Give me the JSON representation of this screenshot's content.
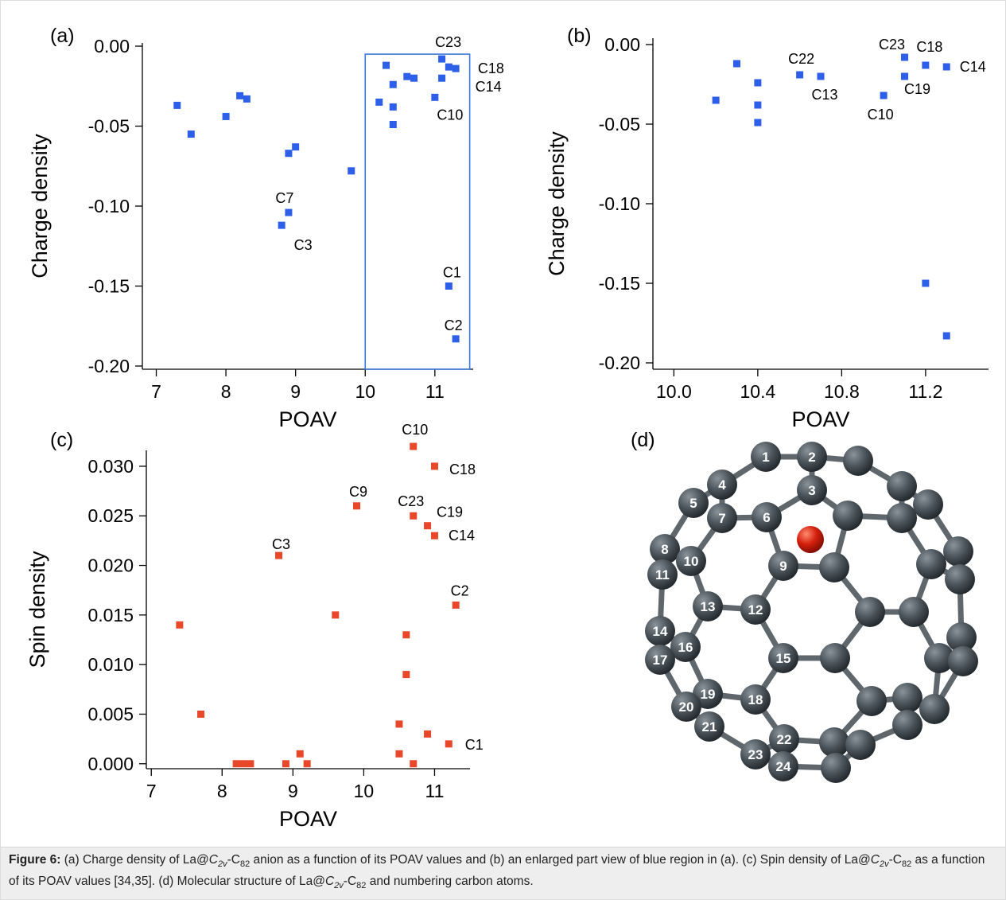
{
  "chart_data": [
    {
      "type": "scatter",
      "panel_label": "(a)",
      "x_label": "POAV",
      "y_label": "Charge density",
      "color": "#2d5fe8",
      "x": [
        7.3,
        7.5,
        8.0,
        8.2,
        8.3,
        8.9,
        9.0,
        8.9,
        8.8,
        9.8,
        10.2,
        10.3,
        10.4,
        10.4,
        10.4,
        10.6,
        10.7,
        11.0,
        11.1,
        11.1,
        11.2,
        11.3,
        11.2,
        11.3
      ],
      "values": [
        -0.037,
        -0.055,
        -0.044,
        -0.031,
        -0.033,
        -0.067,
        -0.063,
        -0.104,
        -0.112,
        -0.078,
        -0.035,
        -0.012,
        -0.024,
        -0.038,
        -0.049,
        -0.019,
        -0.02,
        -0.032,
        -0.008,
        -0.02,
        -0.013,
        -0.014,
        -0.15,
        -0.183
      ],
      "point_labels": [
        null,
        null,
        null,
        null,
        null,
        null,
        null,
        "C7",
        "C3",
        null,
        null,
        null,
        null,
        null,
        null,
        null,
        null,
        "C10",
        "C23",
        null,
        "C18",
        "C14",
        "C1",
        "C2"
      ],
      "xlim": [
        6.8,
        11.55
      ],
      "ylim": [
        -0.202,
        0.002
      ],
      "xticks": [
        7,
        8,
        9,
        10,
        11
      ],
      "yticks": [
        {
          "value": 0,
          "label": "0.00"
        },
        -0.05,
        {
          "value": -0.1,
          "label": "-0.10"
        },
        -0.15,
        {
          "value": -0.2,
          "label": "-0.20"
        }
      ],
      "highlight_region": {
        "x": [
          10.0,
          11.5
        ],
        "y": [
          -0.202,
          -0.005
        ],
        "color": "#3a78d8"
      }
    },
    {
      "type": "scatter",
      "panel_label": "(b)",
      "x_label": "POAV",
      "y_label": "Charge density",
      "color": "#2d5fe8",
      "x": [
        10.2,
        10.3,
        10.4,
        10.4,
        10.4,
        10.6,
        10.7,
        11.0,
        11.1,
        11.1,
        11.2,
        11.3,
        11.2,
        11.3
      ],
      "values": [
        -0.035,
        -0.012,
        -0.024,
        -0.038,
        -0.049,
        -0.019,
        -0.02,
        -0.032,
        -0.008,
        -0.02,
        -0.013,
        -0.014,
        -0.15,
        -0.183
      ],
      "point_labels": [
        null,
        null,
        null,
        null,
        null,
        "C22",
        "C13",
        "C10",
        "C23",
        "C19",
        "C18",
        "C14",
        null,
        null
      ],
      "xlim": [
        9.9,
        11.5
      ],
      "ylim": [
        -0.204,
        0.004
      ],
      "xticks": [
        {
          "value": 10,
          "label": "10.0"
        },
        10.4,
        10.8,
        11.2
      ],
      "yticks": [
        {
          "value": 0,
          "label": "0.00"
        },
        -0.05,
        {
          "value": -0.1,
          "label": "-0.10"
        },
        -0.15,
        {
          "value": -0.2,
          "label": "-0.20"
        }
      ]
    },
    {
      "type": "scatter",
      "panel_label": "(c)",
      "x_label": "POAV",
      "y_label": "Spin density",
      "color": "#e8472a",
      "x": [
        7.4,
        7.7,
        8.2,
        8.3,
        8.4,
        8.8,
        8.9,
        9.1,
        9.2,
        9.6,
        9.9,
        10.5,
        10.5,
        10.6,
        10.6,
        10.7,
        10.7,
        10.7,
        10.9,
        10.9,
        11.0,
        11.0,
        11.2,
        11.3
      ],
      "values": [
        0.014,
        0.005,
        0,
        0,
        0,
        0.021,
        0,
        0.001,
        0,
        0.015,
        0.026,
        0.004,
        0.001,
        0.013,
        0.009,
        0.032,
        0.025,
        0,
        0.024,
        0.003,
        0.03,
        0.023,
        0.002,
        0.016
      ],
      "point_labels": [
        null,
        null,
        null,
        null,
        null,
        "C3",
        null,
        null,
        null,
        null,
        "C9",
        null,
        null,
        null,
        null,
        "C10",
        "C23",
        null,
        "C19",
        null,
        "C18",
        "C14",
        "C1",
        "C2"
      ],
      "xlim": [
        6.93,
        11.5
      ],
      "ylim": [
        -0.0005,
        0.0316
      ],
      "xticks": [
        7,
        8,
        9,
        10,
        11
      ],
      "yticks": [
        {
          "value": 0,
          "label": "0.000"
        },
        0.005,
        {
          "value": 0.01,
          "label": "0.010"
        },
        0.015,
        {
          "value": 0.02,
          "label": "0.020"
        },
        0.025,
        {
          "value": 0.03,
          "label": "0.030"
        }
      ]
    }
  ],
  "molecule": {
    "panel_label": "(d)",
    "atom_labels": [
      "1",
      "2",
      "3",
      "4",
      "5",
      "6",
      "7",
      "8",
      "9",
      "10",
      "11",
      "12",
      "13",
      "14",
      "15",
      "16",
      "17",
      "18",
      "19",
      "20",
      "21",
      "22",
      "23",
      "24"
    ]
  },
  "caption": [
    "Figure 6:",
    " (a) Charge density of La@",
    "C",
    "2v",
    "-C",
    "82",
    " anion as a function of its POAV values and (b) an enlarged part view of blue region in (a). (c) Spin density of La@",
    "C",
    "2v",
    "-C",
    "82",
    " as a function of its POAV values [34,35]. (d) Molecular structure of La@",
    "C",
    "2v",
    "-C",
    "82",
    " and numbering carbon atoms."
  ]
}
